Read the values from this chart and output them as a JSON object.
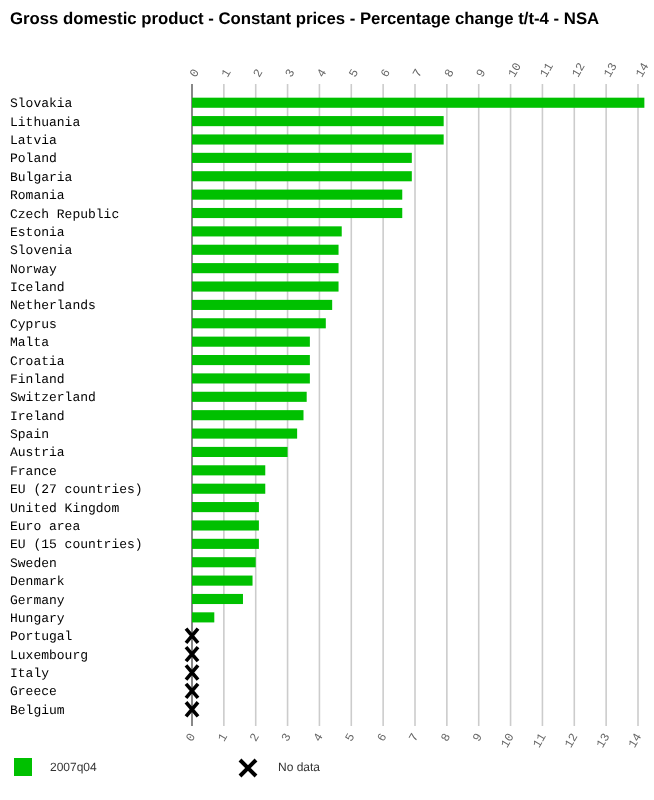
{
  "chart_data": {
    "type": "bar",
    "orientation": "horizontal",
    "title": "Gross domestic product - Constant prices - Percentage change t/t-4 - NSA",
    "categories": [
      "Slovakia",
      "Lithuania",
      "Latvia",
      "Poland",
      "Bulgaria",
      "Romania",
      "Czech Republic",
      "Estonia",
      "Slovenia",
      "Norway",
      "Iceland",
      "Netherlands",
      "Cyprus",
      "Malta",
      "Croatia",
      "Finland",
      "Switzerland",
      "Ireland",
      "Spain",
      "Austria",
      "France",
      "EU (27 countries)",
      "United Kingdom",
      "Euro area",
      "EU (15 countries)",
      "Sweden",
      "Denmark",
      "Germany",
      "Hungary",
      "Portugal",
      "Luxembourg",
      "Italy",
      "Greece",
      "Belgium"
    ],
    "series": [
      {
        "name": "2007q04",
        "color": "#00c000",
        "values": [
          14.2,
          7.9,
          7.9,
          6.9,
          6.9,
          6.6,
          6.6,
          4.7,
          4.6,
          4.6,
          4.6,
          4.4,
          4.2,
          3.7,
          3.7,
          3.7,
          3.6,
          3.5,
          3.3,
          3.0,
          2.3,
          2.3,
          2.1,
          2.1,
          2.1,
          2.0,
          1.9,
          1.6,
          0.7,
          null,
          null,
          null,
          null,
          null
        ]
      }
    ],
    "xlim": [
      0,
      14.2
    ],
    "xticks": [
      0,
      1,
      2,
      3,
      4,
      5,
      6,
      7,
      8,
      9,
      10,
      11,
      12,
      13,
      14
    ],
    "x2lim": [
      0,
      14.2
    ],
    "x2ticks": [
      0,
      1,
      2,
      3,
      4,
      5,
      6,
      7,
      8,
      9,
      10,
      11,
      12,
      13,
      14
    ],
    "grid": "x",
    "legend": "bottom left",
    "annotations": [
      "No data"
    ]
  }
}
